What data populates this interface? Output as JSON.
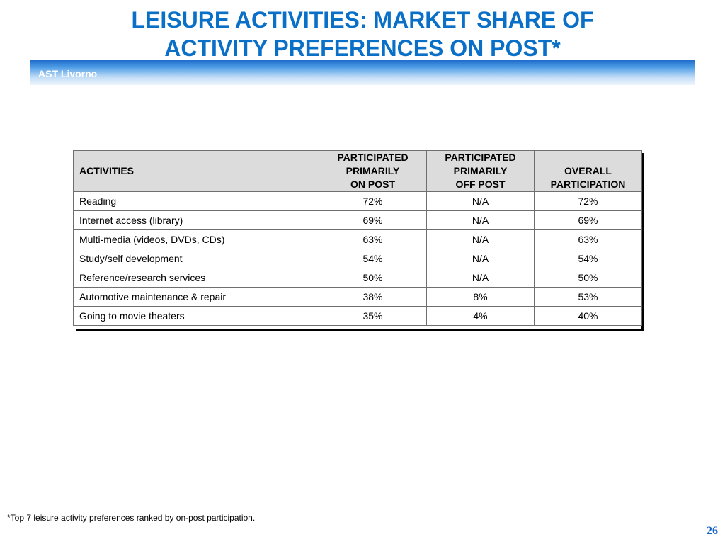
{
  "title": {
    "line1": "LEISURE ACTIVITIES: MARKET SHARE OF",
    "line2": "ACTIVITY PREFERENCES ON POST*"
  },
  "banner": {
    "label": "AST Livorno"
  },
  "table": {
    "columns": [
      {
        "lines": [
          "ACTIVITIES"
        ]
      },
      {
        "lines": [
          "PARTICIPATED",
          "PRIMARILY",
          "ON POST"
        ]
      },
      {
        "lines": [
          "PARTICIPATED",
          "PRIMARILY",
          "OFF POST"
        ]
      },
      {
        "lines": [
          "OVERALL",
          "PARTICIPATION"
        ]
      }
    ],
    "rows": [
      [
        "Reading",
        "72%",
        "N/A",
        "72%"
      ],
      [
        "Internet access (library)",
        "69%",
        "N/A",
        "69%"
      ],
      [
        "Multi-media (videos, DVDs, CDs)",
        "63%",
        "N/A",
        "63%"
      ],
      [
        "Study/self development",
        "54%",
        "N/A",
        "54%"
      ],
      [
        "Reference/research services",
        "50%",
        "N/A",
        "50%"
      ],
      [
        "Automotive maintenance & repair",
        "38%",
        "8%",
        "53%"
      ],
      [
        "Going to movie theaters",
        "35%",
        "4%",
        "40%"
      ]
    ]
  },
  "footnote": "*Top 7 leisure activity preferences ranked by on-post participation.",
  "page_number": "26",
  "colors": {
    "title": "#0a6fc7",
    "banner_dark": "#1a66c8",
    "banner_light": "#eef5fc",
    "header_bg": "#dcdcdc"
  }
}
